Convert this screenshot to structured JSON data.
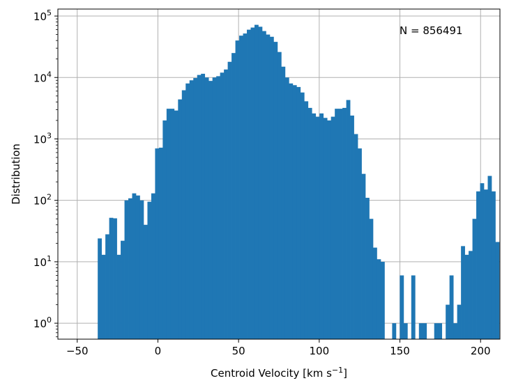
{
  "chart_data": {
    "type": "bar",
    "subtype": "histogram",
    "xlabel": "Centroid Velocity [km s",
    "xlabel_sup": "−1",
    "xlabel_close": "]",
    "ylabel": "Distribution",
    "annotation": "N = 856491",
    "xlim": [
      -62,
      212
    ],
    "ylim": [
      0.55,
      130000
    ],
    "yscale": "log",
    "grid": true,
    "bar_color": "#1f77b4",
    "bin_width": 2.37,
    "x_ticks": [
      {
        "value": -50,
        "label": "−50"
      },
      {
        "value": 0,
        "label": "0"
      },
      {
        "value": 50,
        "label": "50"
      },
      {
        "value": 100,
        "label": "100"
      },
      {
        "value": 150,
        "label": "150"
      },
      {
        "value": 200,
        "label": "200"
      }
    ],
    "y_ticks": [
      {
        "value": 1,
        "base": "10",
        "exp": "0"
      },
      {
        "value": 10,
        "base": "10",
        "exp": "1"
      },
      {
        "value": 100,
        "base": "10",
        "exp": "2"
      },
      {
        "value": 1000,
        "base": "10",
        "exp": "3"
      },
      {
        "value": 10000,
        "base": "10",
        "exp": "4"
      },
      {
        "value": 100000,
        "base": "10",
        "exp": "5"
      }
    ],
    "bins_start": -37.3,
    "counts": [
      24,
      13,
      28,
      52,
      51,
      13,
      22,
      100,
      108,
      130,
      120,
      100,
      40,
      95,
      130,
      700,
      720,
      2000,
      3100,
      3100,
      2900,
      4400,
      6200,
      8000,
      9000,
      9800,
      11000,
      11500,
      10000,
      8800,
      10000,
      10500,
      12000,
      13500,
      18000,
      25000,
      40000,
      48000,
      52000,
      60000,
      65000,
      72000,
      67000,
      57000,
      50000,
      46000,
      38000,
      26000,
      15000,
      10000,
      8000,
      7500,
      7000,
      5700,
      4100,
      3200,
      2600,
      2300,
      2600,
      2200,
      2000,
      2300,
      3100,
      3100,
      3200,
      4300,
      2400,
      1200,
      700,
      270,
      110,
      50,
      17,
      11,
      10,
      0,
      0,
      1,
      0,
      6,
      1,
      0,
      6,
      0,
      1,
      1,
      0,
      0,
      1,
      1,
      0,
      2,
      6,
      1,
      2,
      18,
      13,
      15,
      50,
      140,
      190,
      150,
      250,
      140,
      21
    ]
  }
}
